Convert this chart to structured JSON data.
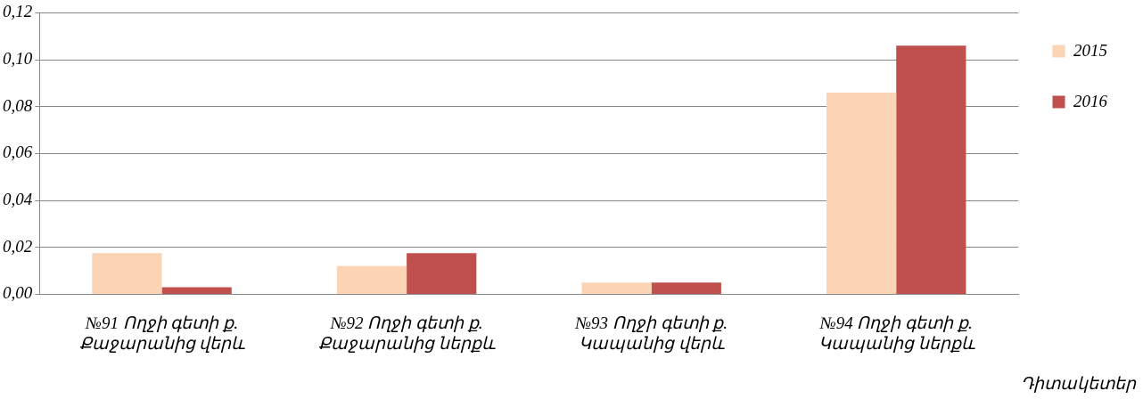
{
  "chart_data": {
    "type": "bar",
    "xlabel": "Դիտակետեր",
    "categories": [
      "№91 Ողջի գետի ք.\nՔաջարանից վերև",
      "№92 Ողջի գետի ք.\nՔաջարանից ներքև",
      "№93 Ողջի գետի ք.\nԿապանից վերև",
      "№94 Ողջի գետի ք.\nԿապանից ներքև"
    ],
    "series": [
      {
        "name": "2015",
        "color": "#fad4b4",
        "values": [
          0.0175,
          0.012,
          0.005,
          0.086
        ]
      },
      {
        "name": "2016",
        "color": "#c0504d",
        "values": [
          0.003,
          0.0175,
          0.005,
          0.106
        ]
      }
    ],
    "ylim": [
      0,
      0.12
    ],
    "yticks": [
      {
        "value": 0,
        "label": "0,00"
      },
      {
        "value": 0.02,
        "label": "0,02"
      },
      {
        "value": 0.04,
        "label": "0,04"
      },
      {
        "value": 0.06,
        "label": "0,06"
      },
      {
        "value": 0.08,
        "label": "0,08"
      },
      {
        "value": 0.1,
        "label": "0,10"
      },
      {
        "value": 0.12,
        "label": "0,12"
      }
    ],
    "grid": "y",
    "legend": "right"
  }
}
